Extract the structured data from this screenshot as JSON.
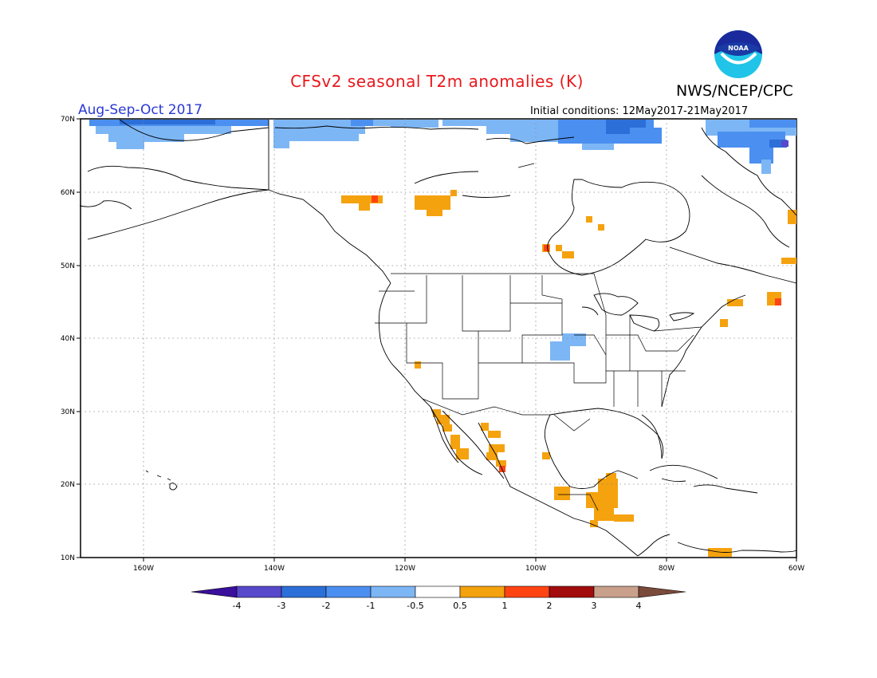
{
  "title": "CFSv2 seasonal T2m anomalies (K)",
  "agency": "NWS/NCEP/CPC",
  "season": "Aug-Sep-Oct 2017",
  "initial_conditions": "Initial conditions: 12May2017-21May2017",
  "logo_text": "NOAA",
  "lat_labels": [
    "70N",
    "60N",
    "50N",
    "40N",
    "30N",
    "20N",
    "10N"
  ],
  "lon_labels": [
    "160W",
    "140W",
    "120W",
    "100W",
    "80W",
    "60W"
  ],
  "colorbar": {
    "labels": [
      "-4",
      "-3",
      "-2",
      "-1",
      "-0.5",
      "0.5",
      "1",
      "2",
      "3",
      "4"
    ],
    "colors": [
      "#3a0f9c",
      "#5848cc",
      "#2c6fd8",
      "#4b8ff0",
      "#7db6f5",
      "#ffffff",
      "#f5a20f",
      "#ff4413",
      "#a20c0c",
      "#c9a08c",
      "#7a4a3a"
    ]
  },
  "chart_data": {
    "type": "heatmap",
    "title": "CFSv2 seasonal T2m anomalies (K)",
    "season": "Aug-Sep-Oct 2017",
    "units": "K",
    "lat_range": [
      10,
      70
    ],
    "lon_range": [
      -170,
      -60
    ],
    "grid": "dotted lat/lon every 10N / 20W",
    "anomaly_regions": [
      {
        "region": "Alaska north coast / Beaufort Sea",
        "lat_range": [
          66,
          70
        ],
        "lon_range": [
          -168,
          -140
        ],
        "anomaly_K": -1.5
      },
      {
        "region": "Canadian Arctic coast",
        "lat_range": [
          67,
          70
        ],
        "lon_range": [
          -140,
          -98
        ],
        "anomaly_K": -1
      },
      {
        "region": "Baffin / NE Canada",
        "lat_range": [
          64,
          70
        ],
        "lon_range": [
          -90,
          -60
        ],
        "anomaly_K": -1.5
      },
      {
        "region": "Northwest Territories",
        "lat_range": [
          58,
          60
        ],
        "lon_range": [
          -130,
          -125
        ],
        "anomaly_K": 0.7
      },
      {
        "region": "Northern Saskatchewan",
        "lat_range": [
          58,
          60
        ],
        "lon_range": [
          -117,
          -112
        ],
        "anomaly_K": 0.7
      },
      {
        "region": "Northern Ontario",
        "lat_range": [
          51,
          53
        ],
        "lon_range": [
          -99,
          -96
        ],
        "anomaly_K": 0.8
      },
      {
        "region": "Great Plains (Kansas/Missouri)",
        "lat_range": [
          38,
          40
        ],
        "lon_range": [
          -98,
          -93
        ],
        "anomaly_K": -0.7
      },
      {
        "region": "Maine / Nova Scotia",
        "lat_range": [
          42,
          45
        ],
        "lon_range": [
          -72,
          -63
        ],
        "anomaly_K": 0.8
      },
      {
        "region": "Baja California",
        "lat_range": [
          23,
          30
        ],
        "lon_range": [
          -116,
          -110
        ],
        "anomaly_K": 0.8
      },
      {
        "region": "Western Mexico",
        "lat_range": [
          21,
          27
        ],
        "lon_range": [
          -108,
          -104
        ],
        "anomaly_K": 0.8
      },
      {
        "region": "Guatemala / Central America",
        "lat_range": [
          14,
          19
        ],
        "lon_range": [
          -93,
          -87
        ],
        "anomaly_K": 0.8
      },
      {
        "region": "Northern South America",
        "lat_range": [
          10,
          12
        ],
        "lon_range": [
          -75,
          -70
        ],
        "anomaly_K": 0.8
      }
    ]
  }
}
